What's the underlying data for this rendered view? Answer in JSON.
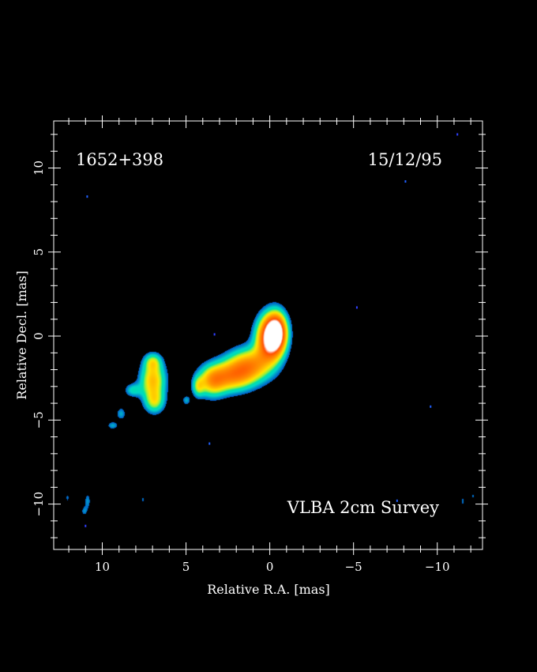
{
  "chart_data": {
    "type": "heatmap",
    "source_label": "1652+398",
    "date_label": "15/12/95",
    "survey_label": "VLBA 2cm Survey",
    "xlabel": "Relative R.A. [mas]",
    "ylabel": "Relative Decl. [mas]",
    "xlim": [
      12.9,
      -12.7
    ],
    "ylim": [
      -12.7,
      12.8
    ],
    "x_ticks": [
      10,
      5,
      0,
      -5,
      -10
    ],
    "x_tick_labels": [
      "10",
      "5",
      "0",
      "−5",
      "−10"
    ],
    "y_ticks": [
      10,
      5,
      0,
      -5,
      -10
    ],
    "y_tick_labels": [
      "10",
      "5",
      "0",
      "−5",
      "−10"
    ],
    "grid": false,
    "colors": {
      "background": "#000000",
      "frame": "#ffffff",
      "low": "#00e0c0",
      "mid": "#ffe000",
      "high": "#ff5000",
      "peak": "#ffffff"
    },
    "components": [
      {
        "name": "core",
        "x": 0.0,
        "y": -0.1,
        "rx": 0.8,
        "ry": 1.3,
        "peak": 1.0
      },
      {
        "name": "inner-jet",
        "x": -0.4,
        "y": 0.3,
        "rx": 0.6,
        "ry": 1.1,
        "peak": 0.75
      },
      {
        "name": "jet-1",
        "x": 1.2,
        "y": -1.7,
        "rx": 1.3,
        "ry": 1.0,
        "peak": 0.6
      },
      {
        "name": "jet-2",
        "x": 2.4,
        "y": -2.4,
        "rx": 1.3,
        "ry": 0.9,
        "peak": 0.55
      },
      {
        "name": "jet-3",
        "x": 3.5,
        "y": -2.7,
        "rx": 0.8,
        "ry": 0.9,
        "peak": 0.45
      },
      {
        "name": "jet-4",
        "x": 4.3,
        "y": -3.0,
        "rx": 0.35,
        "ry": 0.6,
        "peak": 0.3
      },
      {
        "name": "outer-lobe",
        "x": 7.0,
        "y": -2.6,
        "rx": 0.75,
        "ry": 1.1,
        "peak": 0.55
      },
      {
        "name": "outer-lobe-south",
        "x": 6.9,
        "y": -3.9,
        "rx": 0.6,
        "ry": 0.7,
        "peak": 0.35
      },
      {
        "name": "outer-lobe-north",
        "x": 7.0,
        "y": -1.5,
        "rx": 0.5,
        "ry": 0.5,
        "peak": 0.3
      },
      {
        "name": "lobe-bridge",
        "x": 8.2,
        "y": -3.2,
        "rx": 0.5,
        "ry": 0.4,
        "peak": 0.25
      },
      {
        "name": "tail-1",
        "x": 8.9,
        "y": -4.6,
        "rx": 0.3,
        "ry": 0.4,
        "peak": 0.2
      },
      {
        "name": "tail-2",
        "x": 9.4,
        "y": -5.3,
        "rx": 0.35,
        "ry": 0.25,
        "peak": 0.2
      },
      {
        "name": "gap-knot",
        "x": 5.0,
        "y": -3.8,
        "rx": 0.25,
        "ry": 0.3,
        "peak": 0.2
      },
      {
        "name": "blob-sw-1",
        "x": 10.9,
        "y": -9.8,
        "rx": 0.2,
        "ry": 0.5,
        "peak": 0.18
      },
      {
        "name": "blob-sw-2",
        "x": 11.1,
        "y": -10.4,
        "rx": 0.2,
        "ry": 0.3,
        "peak": 0.16
      },
      {
        "name": "blob-sw-3",
        "x": 12.1,
        "y": -9.6,
        "rx": 0.12,
        "ry": 0.3,
        "peak": 0.15
      },
      {
        "name": "blob-s",
        "x": 7.6,
        "y": -9.7,
        "rx": 0.13,
        "ry": 0.2,
        "peak": 0.15
      },
      {
        "name": "blob-se-1",
        "x": -11.5,
        "y": -9.8,
        "rx": 0.12,
        "ry": 0.35,
        "peak": 0.15
      },
      {
        "name": "blob-se-2",
        "x": -12.1,
        "y": -9.5,
        "rx": 0.12,
        "ry": 0.2,
        "peak": 0.15
      }
    ],
    "noise_points": [
      {
        "x": 10.9,
        "y": 8.3
      },
      {
        "x": -11.2,
        "y": 12.0
      },
      {
        "x": -8.1,
        "y": 9.2
      },
      {
        "x": -5.2,
        "y": 1.7
      },
      {
        "x": -9.6,
        "y": -4.2
      },
      {
        "x": 3.3,
        "y": 0.1
      },
      {
        "x": 3.6,
        "y": -6.4
      },
      {
        "x": 11.0,
        "y": -11.3
      },
      {
        "x": -7.6,
        "y": -9.8
      }
    ]
  }
}
